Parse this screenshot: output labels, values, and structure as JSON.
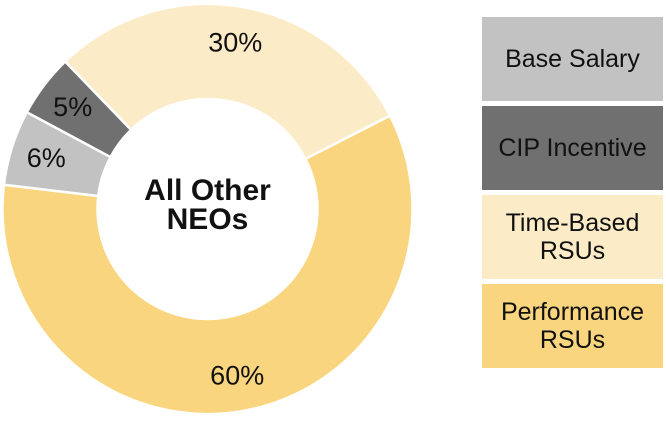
{
  "chart_data": {
    "type": "pie",
    "subtype": "donut",
    "center_label": [
      "All Other",
      "NEOs"
    ],
    "start_angle_deg": -44,
    "direction": "clockwise",
    "segments": [
      {
        "id": "time-based-rsus",
        "label": "Time-Based RSUs",
        "value": 30,
        "display": "30%",
        "color": "#FBEBC6"
      },
      {
        "id": "performance-rsus",
        "label": "Performance RSUs",
        "value": 60,
        "display": "60%",
        "color": "#F8D57E"
      },
      {
        "id": "base-salary",
        "label": "Base Salary",
        "value": 6,
        "display": "6%",
        "color": "#C2C2C2"
      },
      {
        "id": "cip-incentive",
        "label": "CIP Incentive",
        "value": 5,
        "display": "5%",
        "color": "#707070"
      }
    ],
    "separator_color": "#FFFFFF",
    "label_color": "#111111",
    "legend_position": "right"
  },
  "legend": {
    "items": [
      {
        "id": "base-salary",
        "label": "Base Salary",
        "color": "#C2C2C2"
      },
      {
        "id": "cip-incentive",
        "label": "CIP Incentive",
        "color": "#707070"
      },
      {
        "id": "time-based-rsus",
        "label": "Time-Based RSUs",
        "color": "#FBEBC6"
      },
      {
        "id": "performance-rsus",
        "label": "Performance RSUs",
        "color": "#F8D57E"
      }
    ]
  }
}
